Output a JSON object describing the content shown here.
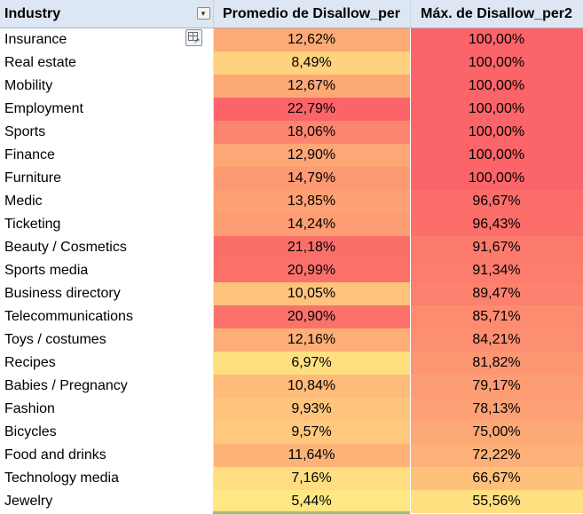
{
  "headers": {
    "industry": "Industry",
    "promedio": "Promedio de Disallow_per",
    "max": "Máx. de Disallow_per2"
  },
  "rows": [
    {
      "industry": "Insurance",
      "promedio": "12,62%",
      "max": "100,00%",
      "promedio_color": "#fdaa76",
      "max_color": "#fb6468"
    },
    {
      "industry": "Real estate",
      "promedio": "8,49%",
      "max": "100,00%",
      "promedio_color": "#fed27f",
      "max_color": "#fb6468"
    },
    {
      "industry": "Mobility",
      "promedio": "12,67%",
      "max": "100,00%",
      "promedio_color": "#fda976",
      "max_color": "#fb6468"
    },
    {
      "industry": "Employment",
      "promedio": "22,79%",
      "max": "100,00%",
      "promedio_color": "#fb6468",
      "max_color": "#fb6468"
    },
    {
      "industry": "Sports",
      "promedio": "18,06%",
      "max": "100,00%",
      "promedio_color": "#fc8570",
      "max_color": "#fb6468"
    },
    {
      "industry": "Finance",
      "promedio": "12,90%",
      "max": "100,00%",
      "promedio_color": "#fda776",
      "max_color": "#fb6468"
    },
    {
      "industry": "Furniture",
      "promedio": "14,79%",
      "max": "100,00%",
      "promedio_color": "#fd9973",
      "max_color": "#fb6468"
    },
    {
      "industry": "Medic",
      "promedio": "13,85%",
      "max": "96,67%",
      "promedio_color": "#fda074",
      "max_color": "#fb6d6a"
    },
    {
      "industry": "Ticketing",
      "promedio": "14,24%",
      "max": "96,43%",
      "promedio_color": "#fd9d74",
      "max_color": "#fb6e6a"
    },
    {
      "industry": "Beauty / Cosmetics",
      "promedio": "21,18%",
      "max": "91,67%",
      "promedio_color": "#fb6f6a",
      "max_color": "#fc7b6d"
    },
    {
      "industry": "Sports media",
      "promedio": "20,99%",
      "max": "91,34%",
      "promedio_color": "#fb716a",
      "max_color": "#fc7c6d"
    },
    {
      "industry": "Business directory",
      "promedio": "10,05%",
      "max": "89,47%",
      "promedio_color": "#fec37c",
      "max_color": "#fc816e"
    },
    {
      "industry": "Telecommunications",
      "promedio": "20,90%",
      "max": "85,71%",
      "promedio_color": "#fb726a",
      "max_color": "#fc8b70"
    },
    {
      "industry": "Toys / costumes",
      "promedio": "12,16%",
      "max": "84,21%",
      "promedio_color": "#fdae77",
      "max_color": "#fc8f71"
    },
    {
      "industry": "Recipes",
      "promedio": "6,97%",
      "max": "81,82%",
      "promedio_color": "#fee081",
      "max_color": "#fc9673"
    },
    {
      "industry": "Babies / Pregnancy",
      "promedio": "10,84%",
      "max": "79,17%",
      "promedio_color": "#febb7a",
      "max_color": "#fd9d74"
    },
    {
      "industry": "Fashion",
      "promedio": "9,93%",
      "max": "78,13%",
      "promedio_color": "#fec47c",
      "max_color": "#fda075"
    },
    {
      "industry": "Bicycles",
      "promedio": "9,57%",
      "max": "75,00%",
      "promedio_color": "#fec87d",
      "max_color": "#fda976"
    },
    {
      "industry": "Food and drinks",
      "promedio": "11,64%",
      "max": "72,22%",
      "promedio_color": "#fdb378",
      "max_color": "#fdb078"
    },
    {
      "industry": "Technology media",
      "promedio": "7,16%",
      "max": "66,67%",
      "promedio_color": "#fede80",
      "max_color": "#fec07b"
    },
    {
      "industry": "Jewelry",
      "promedio": "5,44%",
      "max": "55,56%",
      "promedio_color": "#ffe883",
      "max_color": "#fee081"
    }
  ],
  "icons": {
    "filter": "filter-dropdown-icon",
    "quick_explore": "quick-explore-icon"
  }
}
